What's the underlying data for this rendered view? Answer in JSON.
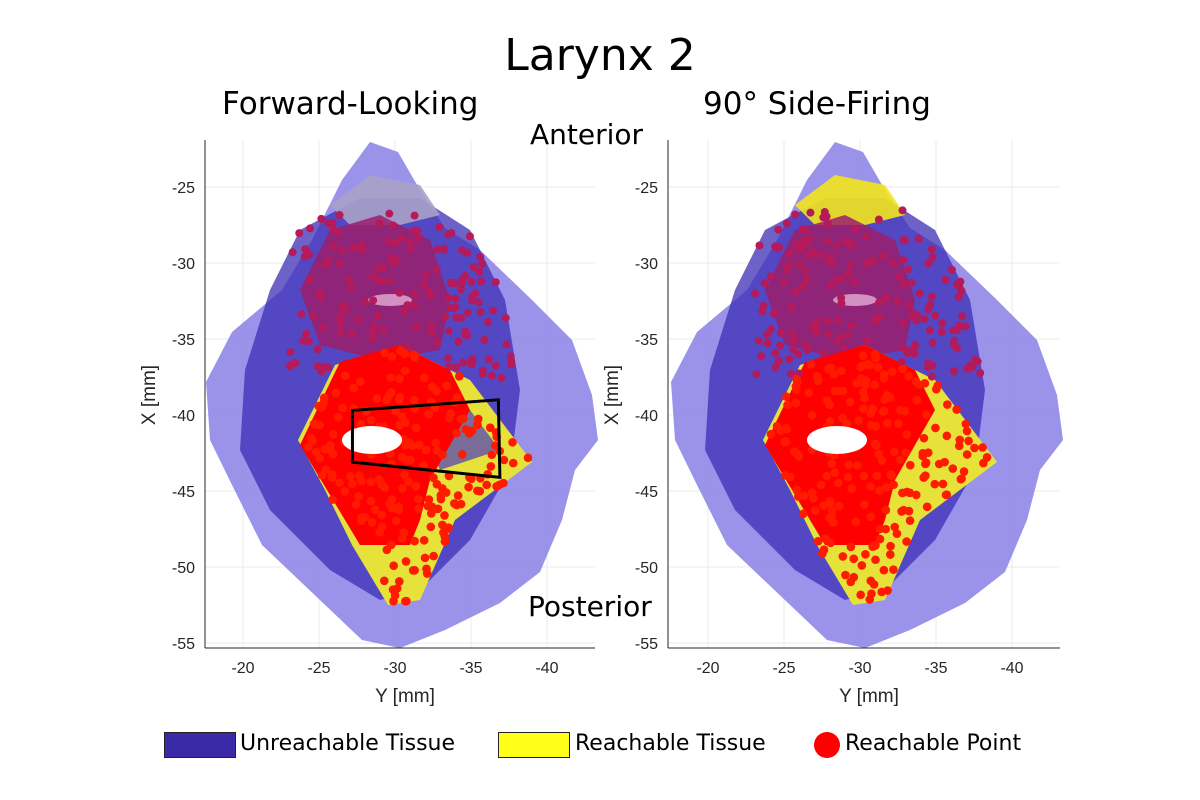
{
  "title": "Larynx 2",
  "orientation": {
    "top": "Anterior",
    "bottom": "Posterior"
  },
  "legend": [
    {
      "label": "Unreachable Tissue",
      "color": "#3a2aa8",
      "shape": "patch"
    },
    {
      "label": "Reachable Tissue",
      "color": "#ffff1a",
      "shape": "patch"
    },
    {
      "label": "Reachable Point",
      "color": "#ff0000",
      "shape": "circle"
    }
  ],
  "chart_data": [
    {
      "type": "scatter",
      "title": "Forward-Looking",
      "xlabel": "Y [mm]",
      "ylabel": "X [mm]",
      "xlim": [
        -17.5,
        -43.2
      ],
      "ylim": [
        -55.3,
        -21.9
      ],
      "x_reversed": true,
      "xticks": [
        "-20",
        "-25",
        "-30",
        "-35",
        "-40"
      ],
      "yticks": [
        "-25",
        "-30",
        "-35",
        "-40",
        "-45",
        "-50",
        "-55"
      ],
      "grid": true,
      "annotation_box": {
        "color": "#000000",
        "corners_mm": [
          [
            -27.2,
            -39.7
          ],
          [
            -36.8,
            -39.0
          ],
          [
            -36.9,
            -44.1
          ],
          [
            -27.2,
            -43.1
          ]
        ]
      }
    },
    {
      "type": "scatter",
      "title": "90° Side-Firing",
      "xlabel": "Y [mm]",
      "ylabel": "X [mm]",
      "xlim": [
        -17.5,
        -43.2
      ],
      "ylim": [
        -55.3,
        -21.9
      ],
      "x_reversed": true,
      "xticks": [
        "-20",
        "-25",
        "-30",
        "-35",
        "-40"
      ],
      "yticks": [
        "-25",
        "-30",
        "-35",
        "-40",
        "-45",
        "-50",
        "-55"
      ],
      "grid": true
    }
  ]
}
